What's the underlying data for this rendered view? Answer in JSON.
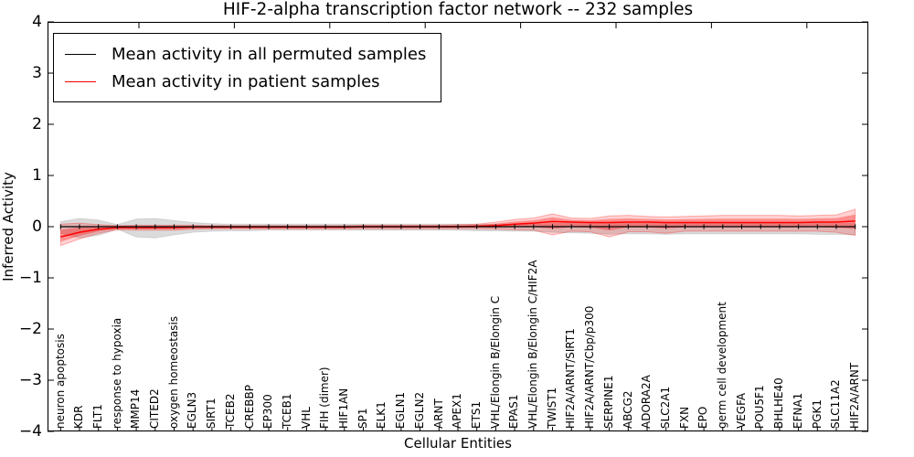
{
  "chart_data": {
    "type": "line",
    "title": "HIF-2-alpha transcription factor network -- 232 samples",
    "xlabel": "Cellular Entities",
    "ylabel": "Inferred Activity",
    "ylim": [
      -4,
      4
    ],
    "yticks": [
      -4,
      -3,
      -2,
      -1,
      0,
      1,
      2,
      3,
      4
    ],
    "grid": false,
    "legend_position": "upper left",
    "categories": [
      "neuron apoptosis",
      "KDR",
      "FLT1",
      "response to hypoxia",
      "MMP14",
      "CITED2",
      "oxygen homeostasis",
      "EGLN3",
      "SIRT1",
      "TCEB2",
      "CREBBP",
      "EP300",
      "TCEB1",
      "VHL",
      "FIH (dimer)",
      "HIF1AN",
      "SP1",
      "ELK1",
      "EGLN1",
      "EGLN2",
      "ARNT",
      "APEX1",
      "ETS1",
      "VHL/Elongin B/Elongin C",
      "EPAS1",
      "VHL/Elongin B/Elongin C/HIF2A",
      "TWIST1",
      "HIF2A/ARNT/SIRT1",
      "HIF2A/ARNT/Cbp/p300",
      "SERPINE1",
      "ABCG2",
      "ADORA2A",
      "SLC2A1",
      "FXN",
      "EPO",
      "germ cell development",
      "VEGFA",
      "POU5F1",
      "BHLHE40",
      "EFNA1",
      "PGK1",
      "SLC11A2",
      "HIF2A/ARNT"
    ],
    "series": [
      {
        "name": "Mean activity in all permuted samples",
        "color": "#000000",
        "marker": "tick",
        "values": [
          0,
          0,
          0,
          0,
          0,
          0,
          0,
          0,
          0,
          0,
          0,
          0,
          0,
          0,
          0,
          0,
          0,
          0,
          0,
          0,
          0,
          0,
          0,
          0,
          0,
          0,
          0,
          0,
          0,
          0,
          0,
          0,
          0,
          0,
          0,
          0,
          0,
          0,
          0,
          0,
          0,
          0,
          0
        ],
        "band_hi": [
          0.1,
          0.16,
          0.13,
          0.04,
          0.15,
          0.16,
          0.12,
          0.08,
          0.06,
          0.05,
          0.05,
          0.05,
          0.05,
          0.05,
          0.05,
          0.05,
          0.05,
          0.05,
          0.05,
          0.05,
          0.05,
          0.05,
          0.05,
          0.05,
          0.05,
          0.05,
          0.06,
          0.06,
          0.06,
          0.06,
          0.06,
          0.06,
          0.06,
          0.06,
          0.06,
          0.06,
          0.06,
          0.06,
          0.06,
          0.06,
          0.06,
          0.06,
          0.06
        ],
        "band_lo": [
          -0.13,
          -0.22,
          -0.17,
          -0.05,
          -0.2,
          -0.22,
          -0.16,
          -0.11,
          -0.09,
          -0.08,
          -0.08,
          -0.07,
          -0.07,
          -0.07,
          -0.07,
          -0.07,
          -0.07,
          -0.07,
          -0.07,
          -0.07,
          -0.07,
          -0.07,
          -0.08,
          -0.08,
          -0.09,
          -0.09,
          -0.11,
          -0.12,
          -0.13,
          -0.15,
          -0.14,
          -0.14,
          -0.15,
          -0.14,
          -0.14,
          -0.14,
          -0.14,
          -0.14,
          -0.14,
          -0.14,
          -0.15,
          -0.15,
          -0.16
        ]
      },
      {
        "name": "Mean activity in patient samples",
        "color": "#ff0000",
        "marker": "none",
        "values": [
          -0.2,
          -0.11,
          -0.05,
          -0.02,
          -0.02,
          -0.02,
          -0.02,
          -0.01,
          -0.01,
          -0.01,
          -0.01,
          -0.01,
          -0.01,
          -0.01,
          -0.01,
          -0.01,
          0.0,
          0.0,
          0.0,
          0.0,
          0.0,
          0.0,
          0.01,
          0.02,
          0.05,
          0.07,
          0.1,
          0.09,
          0.08,
          0.08,
          0.09,
          0.09,
          0.08,
          0.08,
          0.08,
          0.08,
          0.08,
          0.08,
          0.08,
          0.08,
          0.09,
          0.09,
          0.11
        ],
        "band_hi": [
          0.05,
          0.07,
          0.04,
          0.02,
          0.03,
          0.03,
          0.03,
          0.03,
          0.02,
          0.02,
          0.02,
          0.02,
          0.02,
          0.02,
          0.02,
          0.02,
          0.03,
          0.03,
          0.03,
          0.03,
          0.03,
          0.04,
          0.05,
          0.09,
          0.14,
          0.17,
          0.25,
          0.17,
          0.16,
          0.21,
          0.22,
          0.2,
          0.19,
          0.2,
          0.21,
          0.22,
          0.22,
          0.22,
          0.22,
          0.21,
          0.22,
          0.23,
          0.34
        ],
        "band_lo": [
          -0.37,
          -0.24,
          -0.13,
          -0.06,
          -0.07,
          -0.07,
          -0.07,
          -0.05,
          -0.04,
          -0.04,
          -0.04,
          -0.04,
          -0.04,
          -0.04,
          -0.04,
          -0.04,
          -0.04,
          -0.04,
          -0.04,
          -0.04,
          -0.04,
          -0.04,
          -0.04,
          -0.05,
          -0.06,
          -0.07,
          -0.16,
          -0.09,
          -0.1,
          -0.2,
          -0.1,
          -0.1,
          -0.13,
          -0.09,
          -0.09,
          -0.09,
          -0.09,
          -0.09,
          -0.09,
          -0.09,
          -0.09,
          -0.11,
          -0.17
        ]
      }
    ]
  },
  "colors": {
    "permuted_line": "#000000",
    "patient_line": "#ff0000",
    "permuted_band": "rgba(0,0,0,0.14)",
    "patient_band_outer": "rgba(255,0,0,0.18)",
    "patient_band_inner": "rgba(255,0,0,0.32)"
  }
}
